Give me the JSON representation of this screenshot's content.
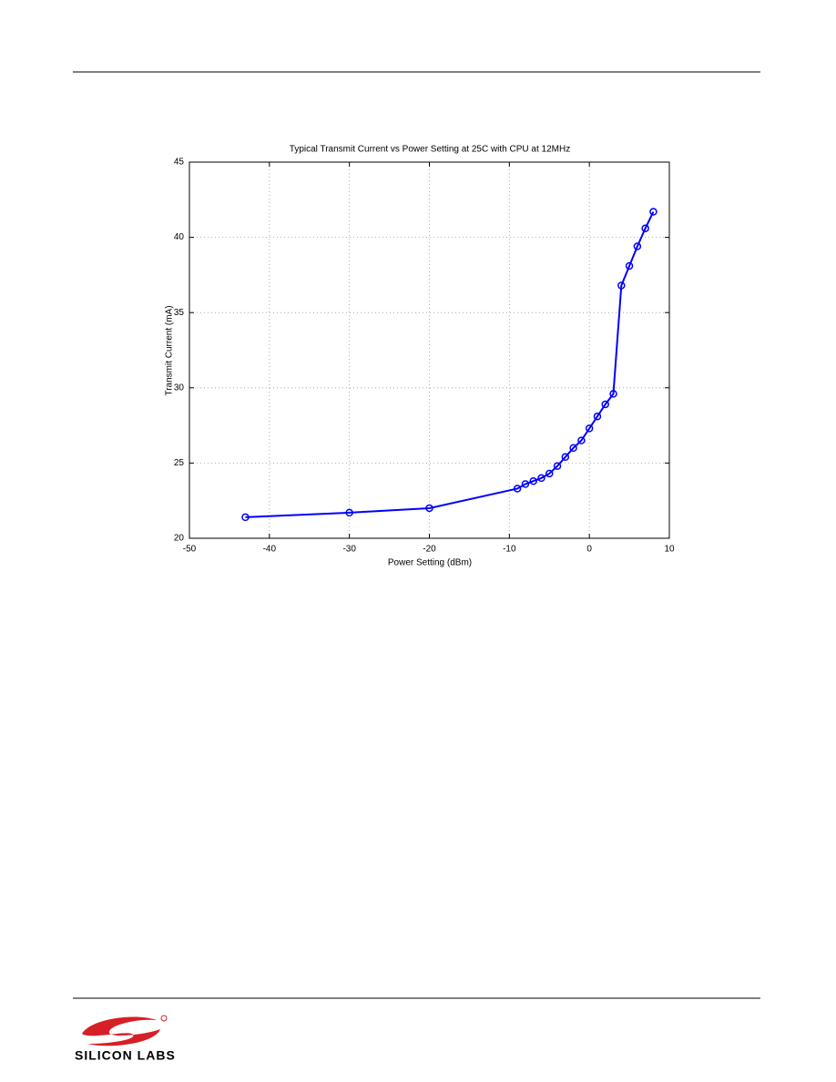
{
  "chart_data": {
    "type": "line",
    "title": "Typical Transmit Current vs Power Setting at 25C with CPU at 12MHz",
    "x_label": "Power Setting (dBm)",
    "y_label": "Transmit Current (mA)",
    "x": [
      -43,
      -30,
      -20,
      -9,
      -8,
      -7,
      -6,
      -5,
      -4,
      -3,
      -2,
      -1,
      0,
      1,
      2,
      3,
      4,
      5,
      6,
      7,
      8
    ],
    "series": [
      {
        "color": "#0000ff",
        "values": [
          21.4,
          21.7,
          22.0,
          23.3,
          23.6,
          23.8,
          24.0,
          24.3,
          24.8,
          25.4,
          26.0,
          26.5,
          27.3,
          28.1,
          28.9,
          29.6,
          36.8,
          38.1,
          39.4,
          40.6,
          41.7
        ]
      }
    ],
    "xlim": [
      -50,
      10
    ],
    "xticks": [
      -50,
      -40,
      -30,
      -20,
      -10,
      0,
      10
    ],
    "ylim": [
      20,
      45
    ],
    "yticks": [
      20,
      25,
      30,
      35,
      40,
      45
    ],
    "grid": true
  },
  "footer": {
    "logo": "SILICON LABS"
  }
}
